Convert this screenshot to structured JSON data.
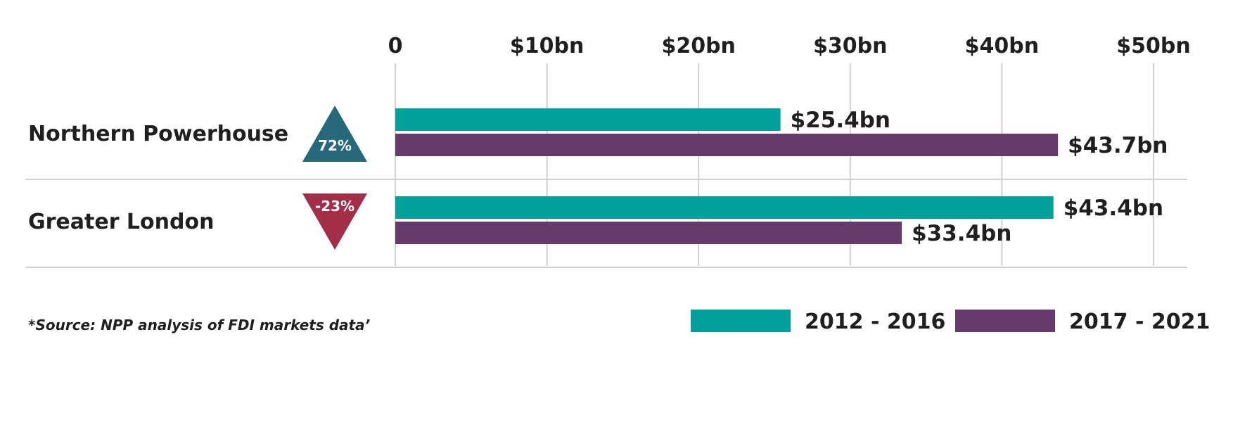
{
  "chart_data": {
    "type": "bar",
    "orientation": "horizontal",
    "categories": [
      "Northern Powerhouse",
      "Greater London"
    ],
    "series": [
      {
        "name": "2012 - 2016",
        "color": "#00a19a",
        "values": [
          25.4,
          43.4
        ],
        "labels": [
          "$25.4bn",
          "$43.4bn"
        ]
      },
      {
        "name": "2017 - 2021",
        "color": "#663a6b",
        "values": [
          43.7,
          33.4
        ],
        "labels": [
          "$43.7bn",
          "$33.4bn"
        ]
      }
    ],
    "changes": [
      {
        "label": "72%",
        "direction": "up",
        "color": "#25697a"
      },
      {
        "label": "-23%",
        "direction": "down",
        "color": "#a42d48"
      }
    ],
    "xlim": [
      0,
      50
    ],
    "xticks": [
      0,
      10,
      20,
      30,
      40,
      50
    ],
    "xtick_labels": [
      "0",
      "$10bn",
      "$20bn",
      "$30bn",
      "$40bn",
      "$50bn"
    ],
    "grid": true,
    "legend_position": "bottom-right",
    "source_note": "*Source: NPP analysis of FDI markets data’"
  }
}
